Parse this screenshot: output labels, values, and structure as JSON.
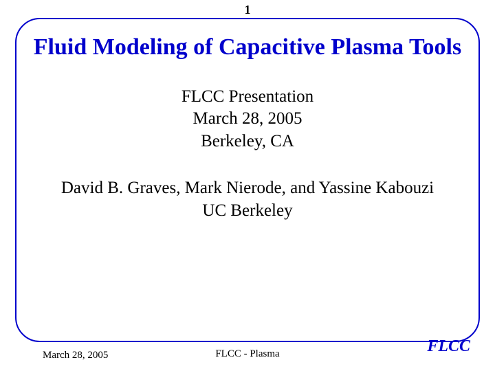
{
  "page_number": "1",
  "title": "Fluid Modeling of Capacitive Plasma Tools",
  "subtitle": {
    "line1": "FLCC Presentation",
    "line2": "March 28, 2005",
    "line3": "Berkeley, CA"
  },
  "authors": {
    "line1": "David B. Graves, Mark Nierode, and Yassine Kabouzi",
    "line2": "UC Berkeley"
  },
  "footer": {
    "date": "March 28, 2005",
    "center": "FLCC - Plasma",
    "logo": "FLCC"
  },
  "styling": {
    "title_color": "#0000cc",
    "border_color": "#0000cc",
    "logo_color": "#0000cc",
    "text_color": "#000000",
    "background_color": "#ffffff",
    "title_fontsize": 34,
    "body_fontsize": 25,
    "footer_fontsize": 15,
    "logo_fontsize": 24,
    "border_radius": 36,
    "border_width": 2
  }
}
